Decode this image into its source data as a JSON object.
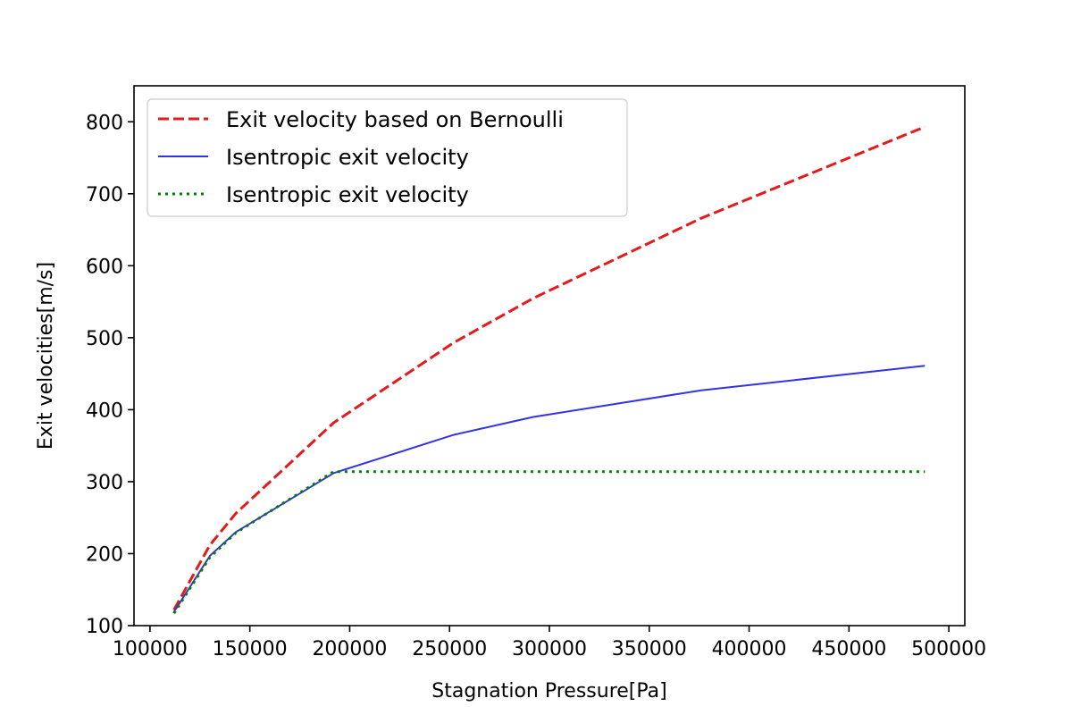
{
  "chart_data": {
    "type": "line",
    "xlabel": "Stagnation Pressure[Pa]",
    "ylabel": "Exit velocities[m/s]",
    "xlim": [
      92000,
      508000
    ],
    "ylim": [
      100,
      850
    ],
    "xticks": [
      100000,
      150000,
      200000,
      250000,
      300000,
      350000,
      400000,
      450000,
      500000
    ],
    "yticks": [
      100,
      200,
      300,
      400,
      500,
      600,
      700,
      800
    ],
    "grid": false,
    "legend_position": "top-left",
    "series": [
      {
        "name": "Exit velocity based on Bernoulli",
        "color": "#e41a1c",
        "style": "dashed",
        "x": [
          112000,
          130000,
          143000,
          192000,
          252000,
          292000,
          376000,
          488000
        ],
        "y": [
          122,
          212,
          256,
          382,
          493,
          555,
          666,
          793
        ]
      },
      {
        "name": "Isentropic exit velocity",
        "color": "#3333e6",
        "style": "solid",
        "x": [
          112000,
          130000,
          143000,
          192000,
          252000,
          292000,
          376000,
          488000
        ],
        "y": [
          119,
          197,
          230,
          312,
          365,
          390,
          427,
          461
        ]
      },
      {
        "name": "Isentropic exit velocity",
        "color": "#008000",
        "style": "dotted",
        "x": [
          112000,
          130000,
          143000,
          192000,
          252000,
          292000,
          376000,
          488000
        ],
        "y": [
          117,
          195,
          229,
          314,
          314,
          314,
          314,
          314
        ]
      }
    ]
  }
}
